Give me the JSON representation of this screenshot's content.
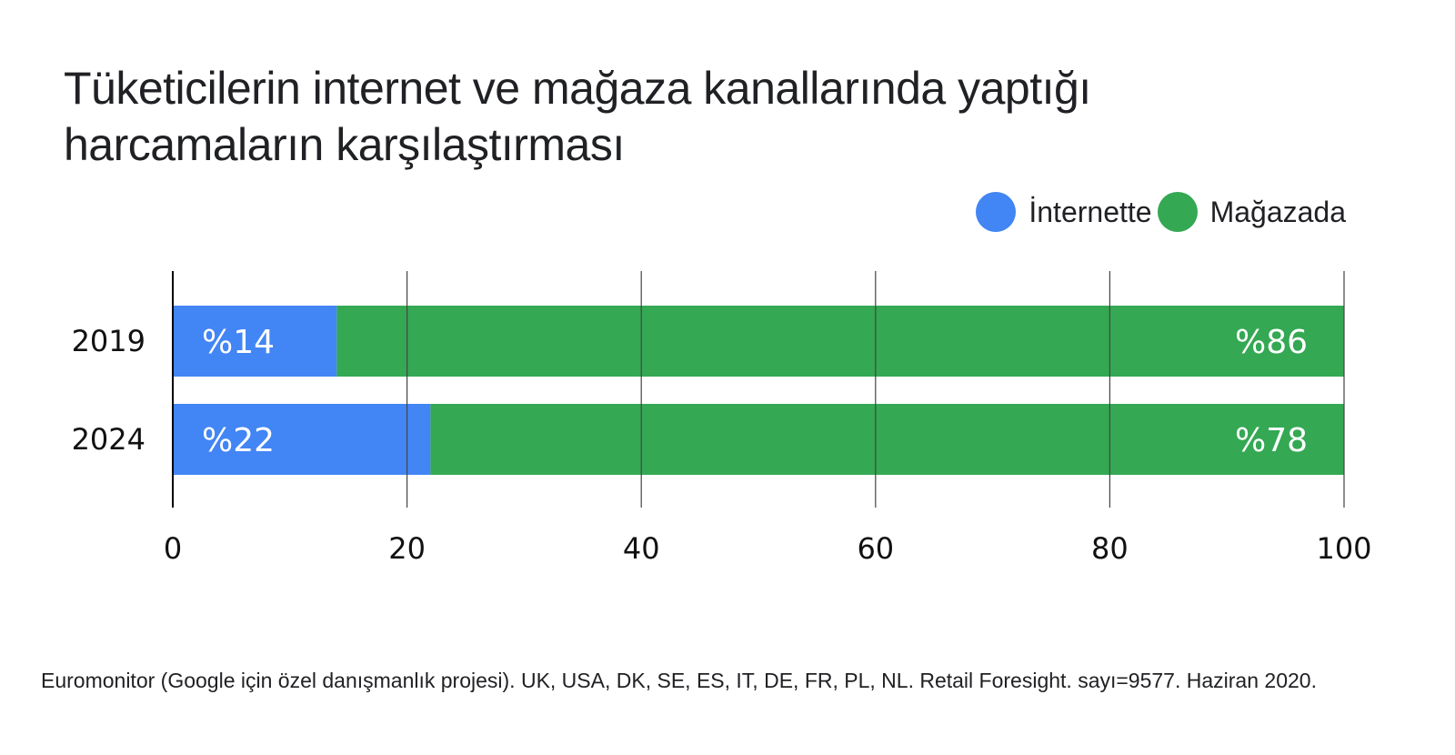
{
  "title_line1": "Tüketicilerin internet ve mağaza kanallarında yaptığı",
  "title_line2": "harcamaların karşılaştırması",
  "legend": [
    {
      "label": "İnternette",
      "color": "#4285F4"
    },
    {
      "label": "Mağazada",
      "color": "#34A853"
    }
  ],
  "source": "Euromonitor (Google için özel danışmanlık projesi). UK, USA, DK, SE, ES, IT, DE, FR, PL, NL. Retail Foresight. sayı=9577. Haziran 2020.",
  "chart_data": {
    "type": "bar",
    "orientation": "horizontal",
    "stacked": true,
    "categories": [
      "2019",
      "2024"
    ],
    "series": [
      {
        "name": "İnternette",
        "values": [
          14,
          22
        ],
        "labels": [
          "%14",
          "%22"
        ],
        "color": "#4285F4"
      },
      {
        "name": "Mağazada",
        "values": [
          86,
          78
        ],
        "labels": [
          "%86",
          "%78"
        ],
        "color": "#34A853"
      }
    ],
    "xlim": [
      0,
      100
    ],
    "xticks": [
      "0",
      "20",
      "40",
      "60",
      "80",
      "100"
    ],
    "grid": true,
    "legend_position": "top-right"
  }
}
